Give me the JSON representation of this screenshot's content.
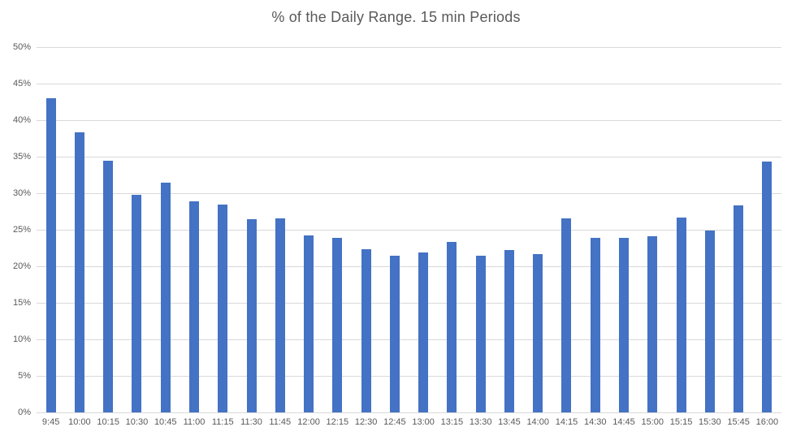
{
  "colors": {
    "bar_fill": "#4472C4",
    "gridline": "#D9D9D9",
    "axis_text": "#595959",
    "title_text": "#595959",
    "background": "#FFFFFF"
  },
  "chart_data": {
    "type": "bar",
    "title": "% of the Daily Range. 15 min Periods",
    "xlabel": "",
    "ylabel": "",
    "categories": [
      "9:45",
      "10:00",
      "10:15",
      "10:30",
      "10:45",
      "11:00",
      "11:15",
      "11:30",
      "11:45",
      "12:00",
      "12:15",
      "12:30",
      "12:45",
      "13:00",
      "13:15",
      "13:30",
      "13:45",
      "14:00",
      "14:15",
      "14:30",
      "14:45",
      "15:00",
      "15:15",
      "15:30",
      "15:45",
      "16:00"
    ],
    "values": [
      43.0,
      38.3,
      34.5,
      29.8,
      31.5,
      28.9,
      28.4,
      26.4,
      26.6,
      24.2,
      23.9,
      22.3,
      21.4,
      21.9,
      23.3,
      21.4,
      22.2,
      21.7,
      26.6,
      23.9,
      23.9,
      24.1,
      26.7,
      24.9,
      28.3,
      34.3
    ],
    "value_suffix": "%",
    "ylim": [
      0,
      50
    ],
    "y_tick_values": [
      0,
      5,
      10,
      15,
      20,
      25,
      30,
      35,
      40,
      45,
      50
    ],
    "y_tick_labels": [
      "0%",
      "5%",
      "10%",
      "15%",
      "20%",
      "25%",
      "30%",
      "35%",
      "40%",
      "45%",
      "50%"
    ],
    "grid": "horizontal",
    "legend": "none"
  }
}
